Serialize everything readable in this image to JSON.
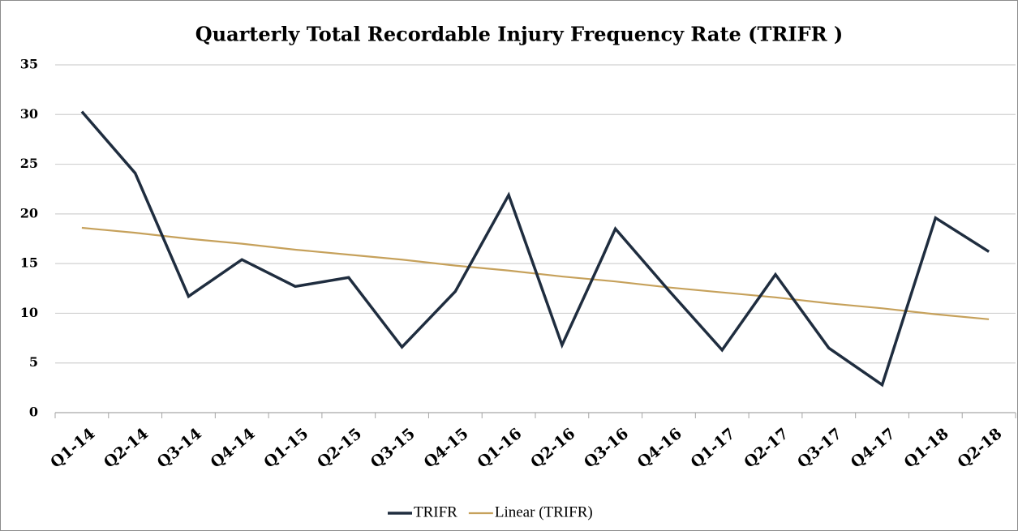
{
  "chart_data": {
    "type": "line",
    "title": "Quarterly  Total Recordable Injury Frequency Rate (TRIFR )",
    "categories": [
      "Q1-14",
      "Q2-14",
      "Q3-14",
      "Q4-14",
      "Q1-15",
      "Q2-15",
      "Q3-15",
      "Q4-15",
      "Q1-16",
      "Q2-16",
      "Q3-16",
      "Q4-16",
      "Q1-17",
      "Q2-17",
      "Q3-17",
      "Q4-17",
      "Q1-18",
      "Q2-18"
    ],
    "series": [
      {
        "name": "TRIFR",
        "color": "#1f2d3f",
        "values": [
          30.3,
          24.1,
          11.7,
          15.4,
          12.7,
          13.6,
          6.6,
          12.2,
          21.9,
          6.8,
          18.5,
          12.3,
          6.3,
          13.9,
          6.5,
          2.8,
          19.6,
          16.2
        ]
      },
      {
        "name": "Linear (TRIFR)",
        "color": "#c6a15b",
        "values": [
          18.6,
          18.1,
          17.5,
          17.0,
          16.4,
          15.9,
          15.4,
          14.8,
          14.3,
          13.7,
          13.2,
          12.6,
          12.1,
          11.6,
          11.0,
          10.5,
          9.9,
          9.4
        ]
      }
    ],
    "ylim": [
      0,
      35
    ],
    "yticks": [
      0,
      5,
      10,
      15,
      20,
      25,
      30,
      35
    ],
    "grid": true,
    "legend": "bottom"
  }
}
